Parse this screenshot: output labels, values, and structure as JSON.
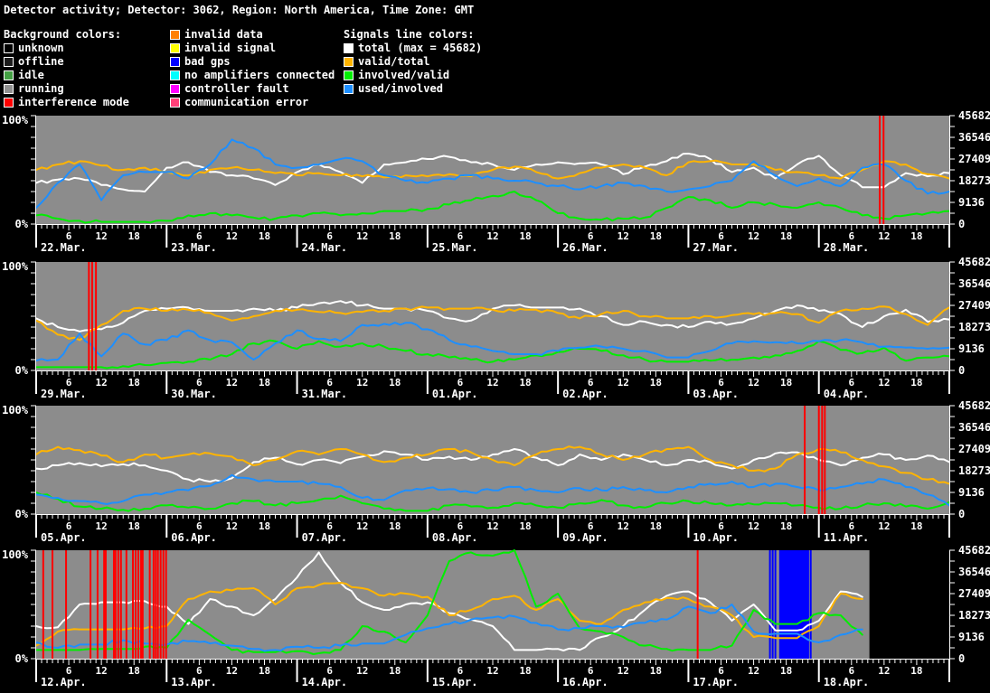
{
  "header": {
    "title": "Detector activity; Detector: 3062, Region: North America, Time Zone: GMT"
  },
  "legend": {
    "background_title": "Background colors:",
    "signals_title": "Signals line colors:",
    "background_items": [
      {
        "label": "unknown",
        "color": "#000000"
      },
      {
        "label": "offline",
        "color": "#1c1c1c"
      },
      {
        "label": "idle",
        "color": "#44a044"
      },
      {
        "label": "running",
        "color": "#909090"
      },
      {
        "label": "interference mode",
        "color": "#ff0000"
      }
    ],
    "status_items": [
      {
        "label": "invalid data",
        "color": "#ff8000"
      },
      {
        "label": "invalid signal",
        "color": "#ffff00"
      },
      {
        "label": "bad gps",
        "color": "#0000ff"
      },
      {
        "label": "no amplifiers connected",
        "color": "#00ffff"
      },
      {
        "label": "controller fault",
        "color": "#ff00ff"
      },
      {
        "label": "communication error",
        "color": "#ff4079"
      }
    ],
    "signal_items": [
      {
        "label": "total (max = 45682)",
        "color": "#ffffff"
      },
      {
        "label": "valid/total",
        "color": "#ffb400"
      },
      {
        "label": "involved/valid",
        "color": "#00ee00"
      },
      {
        "label": "used/involved",
        "color": "#1e8fff"
      }
    ]
  },
  "axes": {
    "left_top_label": "100%",
    "left_bottom_label": "0%",
    "right_labels": [
      "45682",
      "36546",
      "27409",
      "18273",
      "9136",
      "0"
    ],
    "hour_labels": [
      "6",
      "12",
      "18"
    ],
    "hours_per_day": 24,
    "days_per_panel": 7
  },
  "colors": {
    "page_bg": "#000000",
    "plot_bg": "#8c8c8c",
    "axis": "#ffffff",
    "interference": "#ff0000",
    "bad_gps": "#0000ff",
    "series": {
      "total": "#ffffff",
      "valid_total": "#ffb400",
      "involved_valid": "#00ee00",
      "used_involved": "#1e8fff"
    }
  },
  "chart_data": {
    "type": "line",
    "title": "Detector activity",
    "x_unit": "hours from panel start (7 days per panel)",
    "x_step_hours": 4,
    "y_left": {
      "label": "%",
      "min": 0,
      "max": 100
    },
    "y_right": {
      "label": "count",
      "min": 0,
      "max": 45682
    },
    "legend_position": "top",
    "grid": false,
    "series_names": [
      "total",
      "valid/total",
      "involved/valid",
      "used/involved"
    ],
    "panels": [
      {
        "dates": [
          "22.Mar.",
          "23.Mar.",
          "24.Mar.",
          "25.Mar.",
          "26.Mar.",
          "27.Mar.",
          "28.Mar."
        ],
        "red_marks_h": [
          155.2,
          155.9
        ],
        "series": {
          "total": [
            38,
            41,
            42,
            36,
            32,
            30,
            52,
            57,
            48,
            45,
            42,
            36,
            48,
            55,
            48,
            38,
            55,
            57,
            60,
            62,
            57,
            55,
            50,
            55,
            57,
            56,
            55,
            46,
            53,
            58,
            65,
            60,
            48,
            52,
            42,
            55,
            63,
            45,
            34,
            34,
            47,
            44,
            47
          ],
          "valid_total": [
            50,
            55,
            58,
            54,
            50,
            52,
            48,
            45,
            50,
            52,
            50,
            47,
            45,
            47,
            45,
            44,
            43,
            45,
            44,
            46,
            44,
            50,
            53,
            48,
            42,
            47,
            52,
            55,
            52,
            45,
            57,
            58,
            55,
            55,
            50,
            48,
            45,
            42,
            50,
            58,
            55,
            46,
            42
          ],
          "involved_valid": [
            8,
            5,
            3,
            2,
            2,
            2,
            3,
            8,
            10,
            8,
            6,
            5,
            8,
            10,
            8,
            10,
            12,
            12,
            14,
            18,
            22,
            26,
            30,
            22,
            10,
            5,
            4,
            5,
            6,
            15,
            25,
            22,
            15,
            20,
            18,
            15,
            20,
            15,
            8,
            5,
            8,
            10,
            12
          ],
          "used_involved": [
            15,
            38,
            55,
            22,
            45,
            48,
            48,
            42,
            55,
            78,
            70,
            55,
            52,
            55,
            60,
            58,
            45,
            40,
            38,
            42,
            45,
            42,
            40,
            38,
            35,
            32,
            35,
            38,
            35,
            30,
            32,
            35,
            40,
            58,
            45,
            35,
            42,
            35,
            52,
            55,
            40,
            28,
            30
          ]
        }
      },
      {
        "dates": [
          "29.Mar.",
          "30.Mar.",
          "31.Mar.",
          "01.Apr.",
          "02.Apr.",
          "03.Apr.",
          "04.Apr."
        ],
        "red_marks_h": [
          9.7,
          10.3,
          11.0
        ],
        "series": {
          "total": [
            48,
            40,
            36,
            38,
            44,
            55,
            57,
            58,
            55,
            55,
            57,
            55,
            58,
            62,
            64,
            60,
            57,
            57,
            55,
            48,
            46,
            57,
            60,
            58,
            58,
            57,
            50,
            42,
            45,
            42,
            40,
            45,
            43,
            48,
            55,
            60,
            55,
            52,
            40,
            50,
            56,
            45,
            47
          ],
          "valid_total": [
            46,
            33,
            28,
            42,
            55,
            57,
            55,
            56,
            53,
            46,
            50,
            55,
            56,
            54,
            53,
            54,
            55,
            57,
            58,
            57,
            57,
            56,
            55,
            56,
            53,
            48,
            52,
            55,
            50,
            48,
            48,
            50,
            51,
            52,
            53,
            52,
            44,
            55,
            57,
            59,
            52,
            42,
            58
          ],
          "involved_valid": [
            3,
            3,
            3,
            3,
            4,
            5,
            7,
            8,
            10,
            15,
            25,
            27,
            20,
            27,
            22,
            25,
            22,
            18,
            15,
            12,
            10,
            8,
            10,
            14,
            17,
            20,
            18,
            14,
            10,
            8,
            8,
            9,
            10,
            12,
            14,
            18,
            27,
            19,
            16,
            21,
            9,
            12,
            13
          ],
          "used_involved": [
            9,
            10,
            34,
            13,
            34,
            24,
            28,
            37,
            28,
            26,
            10,
            25,
            37,
            29,
            27,
            42,
            43,
            44,
            38,
            28,
            22,
            18,
            15,
            15,
            18,
            21,
            22,
            20,
            18,
            12,
            12,
            18,
            25,
            27,
            26,
            25,
            27,
            28,
            26,
            22,
            21,
            20,
            21
          ]
        }
      },
      {
        "dates": [
          "05.Apr.",
          "06.Apr.",
          "07.Apr.",
          "08.Apr.",
          "09.Apr.",
          "10.Apr.",
          "11.Apr."
        ],
        "red_marks_h": [
          141.4,
          144.0,
          144.6,
          145.1
        ],
        "series": {
          "total": [
            42,
            45,
            47,
            44,
            46,
            45,
            40,
            32,
            30,
            33,
            48,
            52,
            46,
            50,
            47,
            53,
            58,
            55,
            50,
            53,
            50,
            55,
            60,
            52,
            45,
            55,
            50,
            55,
            50,
            45,
            50,
            48,
            42,
            50,
            56,
            57,
            50,
            45,
            52,
            55,
            50,
            54,
            48
          ],
          "valid_total": [
            55,
            62,
            59,
            54,
            48,
            55,
            52,
            55,
            56,
            53,
            45,
            50,
            58,
            55,
            60,
            55,
            48,
            52,
            55,
            60,
            57,
            50,
            45,
            55,
            60,
            62,
            55,
            50,
            55,
            60,
            62,
            50,
            45,
            40,
            42,
            55,
            60,
            57,
            50,
            44,
            38,
            32,
            28
          ],
          "involved_valid": [
            20,
            14,
            7,
            5,
            4,
            5,
            8,
            6,
            5,
            10,
            12,
            8,
            10,
            13,
            17,
            10,
            5,
            3,
            3,
            8,
            7,
            6,
            10,
            8,
            6,
            10,
            13,
            8,
            6,
            10,
            12,
            10,
            8,
            9,
            10,
            8,
            6,
            5,
            8,
            10,
            7,
            5,
            11
          ],
          "used_involved": [
            18,
            15,
            12,
            10,
            12,
            18,
            20,
            22,
            26,
            36,
            32,
            30,
            30,
            28,
            25,
            15,
            13,
            22,
            24,
            23,
            20,
            22,
            25,
            22,
            20,
            24,
            22,
            25,
            22,
            20,
            25,
            28,
            30,
            25,
            28,
            25,
            22,
            25,
            28,
            32,
            25,
            18,
            8
          ]
        }
      },
      {
        "dates": [
          "12.Apr.",
          "13.Apr.",
          "14.Apr.",
          "15.Apr.",
          "16.Apr.",
          "17.Apr.",
          "18.Apr."
        ],
        "red_marks_h": [
          1.3,
          3.0,
          5.5,
          10.0,
          11.3,
          12.5,
          12.8,
          14.3,
          14.6,
          15.1,
          15.6,
          16.6,
          17.8,
          18.3,
          18.8,
          19.3,
          19.6,
          20.9,
          21.6,
          22.0,
          22.4,
          22.9,
          23.4,
          23.9,
          121.7
        ],
        "blue_marks_h": [
          135.0,
          135.5,
          136.0,
          142.5
        ],
        "blue_region_h": [
          136.7,
          142.2
        ],
        "data_end_h": 153.3,
        "series": {
          "total": [
            30,
            29,
            50,
            52,
            52,
            53,
            48,
            32,
            55,
            48,
            40,
            55,
            75,
            98,
            70,
            52,
            45,
            50,
            52,
            42,
            36,
            30,
            8,
            8,
            9,
            8,
            20,
            30,
            45,
            58,
            62,
            52,
            35,
            50,
            26,
            26,
            35,
            62,
            57
          ],
          "valid_total": [
            12,
            25,
            27,
            27,
            27,
            28,
            30,
            55,
            62,
            63,
            65,
            50,
            65,
            68,
            70,
            65,
            58,
            60,
            57,
            40,
            45,
            55,
            58,
            45,
            55,
            35,
            32,
            45,
            52,
            56,
            55,
            48,
            40,
            20,
            19,
            19,
            30,
            60,
            55
          ],
          "involved_valid": [
            8,
            8,
            8,
            9,
            9,
            11,
            10,
            36,
            22,
            8,
            6,
            6,
            7,
            5,
            8,
            30,
            25,
            15,
            40,
            90,
            98,
            95,
            100,
            48,
            60,
            28,
            25,
            20,
            12,
            9,
            8,
            8,
            12,
            45,
            32,
            32,
            42,
            40,
            22
          ],
          "used_involved": [
            15,
            10,
            13,
            13,
            17,
            14,
            13,
            16,
            14,
            12,
            9,
            8,
            11,
            10,
            12,
            14,
            14,
            22,
            28,
            32,
            36,
            38,
            39,
            33,
            27,
            28,
            30,
            29,
            33,
            36,
            48,
            42,
            50,
            25,
            23,
            23,
            15,
            22,
            27
          ]
        }
      }
    ]
  }
}
